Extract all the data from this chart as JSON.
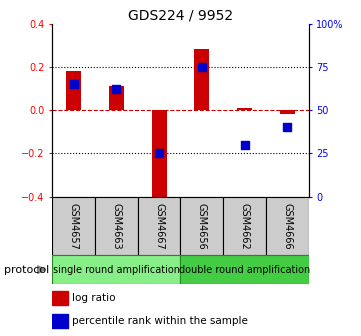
{
  "title": "GDS224 / 9952",
  "samples": [
    "GSM4657",
    "GSM4663",
    "GSM4667",
    "GSM4656",
    "GSM4662",
    "GSM4666"
  ],
  "log_ratio": [
    0.18,
    0.11,
    -0.42,
    0.28,
    0.01,
    -0.02
  ],
  "percentile_rank": [
    65,
    62,
    25,
    75,
    30,
    40
  ],
  "ylim_left": [
    -0.4,
    0.4
  ],
  "ylim_right": [
    0,
    100
  ],
  "yticks_left": [
    -0.4,
    -0.2,
    0.0,
    0.2,
    0.4
  ],
  "yticks_right": [
    0,
    25,
    50,
    75,
    100
  ],
  "ytick_labels_right": [
    "0",
    "25",
    "50",
    "75",
    "100%"
  ],
  "bar_color": "#cc0000",
  "dot_color": "#0000cc",
  "hline_color": "#cc0000",
  "dotted_color": "#000000",
  "protocol_group1_label": "single round amplification",
  "protocol_group1_color": "#88ee88",
  "protocol_group2_label": "double round amplification",
  "protocol_group2_color": "#44cc44",
  "sample_box_color": "#cccccc",
  "legend_log_ratio_label": "log ratio",
  "legend_pct_label": "percentile rank within the sample",
  "legend_log_color": "#cc0000",
  "legend_pct_color": "#0000cc",
  "protocol_label": "protocol",
  "background_color": "#ffffff",
  "bar_width": 0.35,
  "dot_size": 40,
  "title_fontsize": 10,
  "tick_fontsize": 7,
  "label_fontsize": 7,
  "legend_fontsize": 7.5
}
